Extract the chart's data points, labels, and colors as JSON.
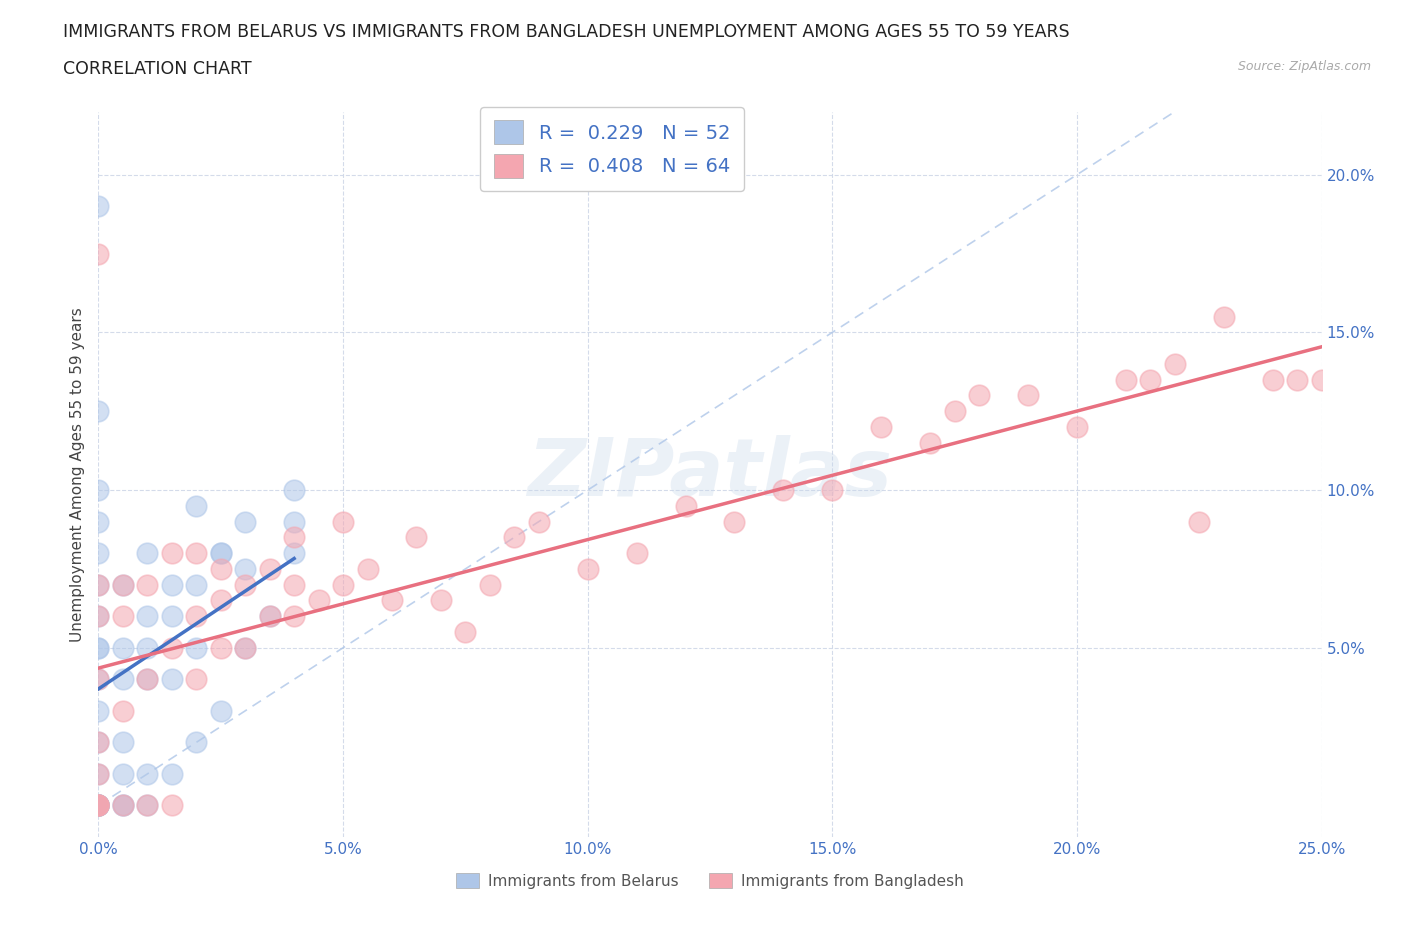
{
  "title_line1": "IMMIGRANTS FROM BELARUS VS IMMIGRANTS FROM BANGLADESH UNEMPLOYMENT AMONG AGES 55 TO 59 YEARS",
  "title_line2": "CORRELATION CHART",
  "source_text": "Source: ZipAtlas.com",
  "ylabel": "Unemployment Among Ages 55 to 59 years",
  "xlim": [
    0.0,
    0.25
  ],
  "ylim": [
    -0.01,
    0.22
  ],
  "xticks": [
    0.0,
    0.05,
    0.1,
    0.15,
    0.2,
    0.25
  ],
  "yticks": [
    0.05,
    0.1,
    0.15,
    0.2
  ],
  "xticklabels": [
    "0.0%",
    "5.0%",
    "10.0%",
    "15.0%",
    "20.0%",
    "25.0%"
  ],
  "yticklabels": [
    "5.0%",
    "10.0%",
    "15.0%",
    "20.0%"
  ],
  "color_belarus": "#aec6e8",
  "color_bangladesh": "#f4a6b0",
  "trendline_color_belarus": "#4472c4",
  "trendline_color_bangladesh": "#e87080",
  "diag_line_color": "#aec6e8",
  "legend_R_belarus": "0.229",
  "legend_N_belarus": "52",
  "legend_R_bangladesh": "0.408",
  "legend_N_bangladesh": "64",
  "watermark": "ZIPatlas",
  "belarus_x": [
    0.0,
    0.0,
    0.0,
    0.0,
    0.0,
    0.0,
    0.0,
    0.0,
    0.0,
    0.0,
    0.0,
    0.0,
    0.0,
    0.0,
    0.0,
    0.0,
    0.0,
    0.0,
    0.0,
    0.0,
    0.0,
    0.005,
    0.005,
    0.005,
    0.005,
    0.005,
    0.005,
    0.01,
    0.01,
    0.01,
    0.01,
    0.01,
    0.015,
    0.015,
    0.015,
    0.02,
    0.02,
    0.02,
    0.025,
    0.025,
    0.03,
    0.03,
    0.035,
    0.04,
    0.04,
    0.005,
    0.01,
    0.015,
    0.02,
    0.025,
    0.03,
    0.04
  ],
  "belarus_y": [
    0.0,
    0.0,
    0.0,
    0.0,
    0.0,
    0.0,
    0.0,
    0.0,
    0.01,
    0.02,
    0.03,
    0.04,
    0.05,
    0.06,
    0.07,
    0.08,
    0.09,
    0.1,
    0.125,
    0.19,
    0.05,
    0.0,
    0.0,
    0.01,
    0.02,
    0.05,
    0.07,
    0.0,
    0.01,
    0.04,
    0.05,
    0.08,
    0.01,
    0.04,
    0.07,
    0.02,
    0.05,
    0.095,
    0.03,
    0.08,
    0.05,
    0.09,
    0.06,
    0.08,
    0.09,
    0.04,
    0.06,
    0.06,
    0.07,
    0.08,
    0.075,
    0.1
  ],
  "bangladesh_x": [
    0.0,
    0.0,
    0.0,
    0.0,
    0.0,
    0.0,
    0.0,
    0.0,
    0.0,
    0.0,
    0.005,
    0.005,
    0.005,
    0.005,
    0.01,
    0.01,
    0.01,
    0.015,
    0.015,
    0.015,
    0.02,
    0.02,
    0.02,
    0.025,
    0.025,
    0.025,
    0.03,
    0.03,
    0.035,
    0.035,
    0.04,
    0.04,
    0.04,
    0.045,
    0.05,
    0.05,
    0.055,
    0.06,
    0.065,
    0.07,
    0.075,
    0.08,
    0.085,
    0.09,
    0.1,
    0.11,
    0.12,
    0.13,
    0.14,
    0.15,
    0.16,
    0.17,
    0.175,
    0.18,
    0.19,
    0.2,
    0.21,
    0.215,
    0.22,
    0.225,
    0.23,
    0.24,
    0.245,
    0.25
  ],
  "bangladesh_y": [
    0.0,
    0.0,
    0.0,
    0.0,
    0.01,
    0.02,
    0.04,
    0.06,
    0.07,
    0.175,
    0.0,
    0.03,
    0.06,
    0.07,
    0.0,
    0.04,
    0.07,
    0.0,
    0.05,
    0.08,
    0.04,
    0.06,
    0.08,
    0.05,
    0.065,
    0.075,
    0.05,
    0.07,
    0.06,
    0.075,
    0.06,
    0.07,
    0.085,
    0.065,
    0.07,
    0.09,
    0.075,
    0.065,
    0.085,
    0.065,
    0.055,
    0.07,
    0.085,
    0.09,
    0.075,
    0.08,
    0.095,
    0.09,
    0.1,
    0.1,
    0.12,
    0.115,
    0.125,
    0.13,
    0.13,
    0.12,
    0.135,
    0.135,
    0.14,
    0.09,
    0.155,
    0.135,
    0.135,
    0.135
  ],
  "background_color": "#ffffff",
  "grid_color": "#d0d8e8",
  "title_fontsize": 12.5,
  "axis_label_fontsize": 11,
  "tick_fontsize": 11,
  "legend_fontsize": 14
}
